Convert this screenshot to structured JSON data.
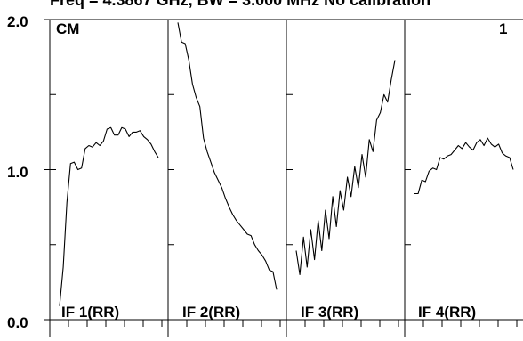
{
  "header": {
    "text": "Freq = 4.3867 GHz, BW = 3.000 MHz No calibration"
  },
  "corner": {
    "source_label": "CM",
    "page_number": "1"
  },
  "colors": {
    "line": "#000000",
    "background": "#ffffff"
  },
  "chart_data": [
    {
      "type": "line",
      "panel_label": "IF 1(RR)",
      "ylim": [
        0,
        2.0
      ],
      "y_tick_labels": [
        "0.0",
        "1.0",
        "2.0"
      ],
      "x": [
        0,
        1,
        2,
        3,
        4,
        5,
        6,
        7,
        8,
        9,
        10,
        11,
        12,
        13,
        14,
        15,
        16,
        17,
        18,
        19,
        20,
        21,
        22,
        23,
        24,
        25,
        26,
        27
      ],
      "values": [
        0.09,
        0.35,
        0.78,
        1.04,
        1.05,
        1.0,
        1.01,
        1.14,
        1.16,
        1.15,
        1.18,
        1.16,
        1.19,
        1.27,
        1.28,
        1.23,
        1.23,
        1.28,
        1.27,
        1.22,
        1.25,
        1.25,
        1.26,
        1.22,
        1.2,
        1.17,
        1.12,
        1.08
      ]
    },
    {
      "type": "line",
      "panel_label": "IF 2(RR)",
      "ylim": [
        0,
        2.0
      ],
      "x": [
        0,
        1,
        2,
        3,
        4,
        5,
        6,
        7,
        8,
        9,
        10,
        11,
        12,
        13,
        14,
        15,
        16,
        17,
        18,
        19,
        20,
        21,
        22,
        23,
        24,
        25,
        26,
        27
      ],
      "values": [
        1.98,
        1.85,
        1.84,
        1.73,
        1.57,
        1.48,
        1.42,
        1.21,
        1.12,
        1.05,
        0.98,
        0.93,
        0.88,
        0.81,
        0.75,
        0.7,
        0.66,
        0.63,
        0.6,
        0.57,
        0.56,
        0.5,
        0.46,
        0.43,
        0.39,
        0.33,
        0.32,
        0.2
      ]
    },
    {
      "type": "line",
      "panel_label": "IF 3(RR)",
      "ylim": [
        0,
        2.0
      ],
      "x": [
        0,
        1,
        2,
        3,
        4,
        5,
        6,
        7,
        8,
        9,
        10,
        11,
        12,
        13,
        14,
        15,
        16,
        17,
        18,
        19,
        20,
        21,
        22,
        23,
        24,
        25,
        26,
        27
      ],
      "values": [
        0.46,
        0.3,
        0.55,
        0.35,
        0.6,
        0.4,
        0.66,
        0.46,
        0.73,
        0.54,
        0.82,
        0.62,
        0.86,
        0.73,
        0.95,
        0.82,
        1.02,
        0.88,
        1.1,
        0.95,
        1.2,
        1.12,
        1.33,
        1.38,
        1.5,
        1.45,
        1.6,
        1.73
      ]
    },
    {
      "type": "line",
      "panel_label": "IF 4(RR)",
      "ylim": [
        0,
        2.0
      ],
      "x": [
        0,
        1,
        2,
        3,
        4,
        5,
        6,
        7,
        8,
        9,
        10,
        11,
        12,
        13,
        14,
        15,
        16,
        17,
        18,
        19,
        20,
        21,
        22,
        23,
        24,
        25,
        26,
        27
      ],
      "values": [
        0.84,
        0.84,
        0.93,
        0.92,
        0.99,
        1.01,
        1.0,
        1.08,
        1.07,
        1.09,
        1.1,
        1.13,
        1.16,
        1.14,
        1.18,
        1.15,
        1.13,
        1.18,
        1.2,
        1.16,
        1.21,
        1.17,
        1.15,
        1.17,
        1.11,
        1.09,
        1.08,
        1.0
      ]
    }
  ]
}
